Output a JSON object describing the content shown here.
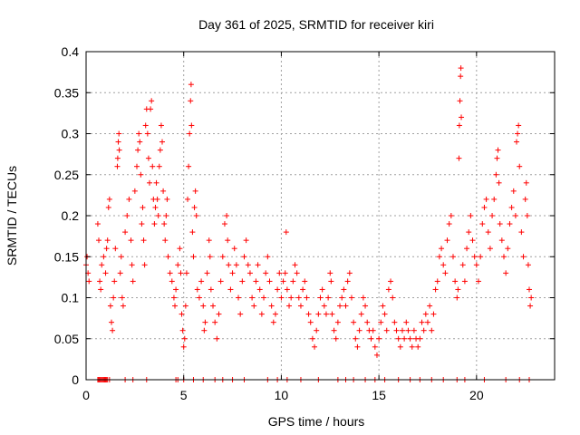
{
  "chart_data": {
    "type": "scatter",
    "title": "Day 361 of 2025, SRMTID for receiver kiri",
    "xlabel": "GPS time / hours",
    "ylabel": "SRMTID / TECUs",
    "xlim": [
      0,
      24
    ],
    "ylim": [
      0,
      0.4
    ],
    "grid": true,
    "marker": "+",
    "color": "#ff0000",
    "x_ticks": [
      "0",
      "5",
      "10",
      "15",
      "20"
    ],
    "x_tick_values": [
      0,
      5,
      10,
      15,
      20
    ],
    "y_ticks": [
      "0",
      "0.05",
      "0.1",
      "0.15",
      "0.2",
      "0.25",
      "0.3",
      "0.35",
      "0.4"
    ],
    "y_tick_values": [
      0,
      0.05,
      0.1,
      0.15,
      0.2,
      0.25,
      0.3,
      0.35,
      0.4
    ],
    "series": [
      {
        "name": "SRMTID",
        "points": [
          [
            0.0,
            0.14
          ],
          [
            0.05,
            0.15
          ],
          [
            0.1,
            0.13
          ],
          [
            0.15,
            0.12
          ],
          [
            0.6,
            0.19
          ],
          [
            0.65,
            0.17
          ],
          [
            0.7,
            0.12
          ],
          [
            0.75,
            0.11
          ],
          [
            0.8,
            0.14
          ],
          [
            0.9,
            0.15
          ],
          [
            1.0,
            0.13
          ],
          [
            1.05,
            0.16
          ],
          [
            1.1,
            0.17
          ],
          [
            1.15,
            0.21
          ],
          [
            1.2,
            0.22
          ],
          [
            1.25,
            0.09
          ],
          [
            1.3,
            0.07
          ],
          [
            1.35,
            0.06
          ],
          [
            1.4,
            0.1
          ],
          [
            1.45,
            0.12
          ],
          [
            1.5,
            0.16
          ],
          [
            1.6,
            0.26
          ],
          [
            1.62,
            0.27
          ],
          [
            1.65,
            0.29
          ],
          [
            1.68,
            0.3
          ],
          [
            1.7,
            0.28
          ],
          [
            1.75,
            0.13
          ],
          [
            1.8,
            0.15
          ],
          [
            1.85,
            0.1
          ],
          [
            1.9,
            0.09
          ],
          [
            2.0,
            0.18
          ],
          [
            2.1,
            0.2
          ],
          [
            2.2,
            0.22
          ],
          [
            2.3,
            0.17
          ],
          [
            2.35,
            0.14
          ],
          [
            2.4,
            0.12
          ],
          [
            2.5,
            0.23
          ],
          [
            2.6,
            0.26
          ],
          [
            2.65,
            0.28
          ],
          [
            2.7,
            0.3
          ],
          [
            2.75,
            0.29
          ],
          [
            2.8,
            0.25
          ],
          [
            2.85,
            0.19
          ],
          [
            2.9,
            0.21
          ],
          [
            2.95,
            0.17
          ],
          [
            3.0,
            0.14
          ],
          [
            3.05,
            0.31
          ],
          [
            3.1,
            0.33
          ],
          [
            3.15,
            0.3
          ],
          [
            3.2,
            0.27
          ],
          [
            3.25,
            0.24
          ],
          [
            3.3,
            0.33
          ],
          [
            3.35,
            0.34
          ],
          [
            3.4,
            0.26
          ],
          [
            3.45,
            0.22
          ],
          [
            3.5,
            0.19
          ],
          [
            3.55,
            0.21
          ],
          [
            3.6,
            0.24
          ],
          [
            3.65,
            0.22
          ],
          [
            3.7,
            0.2
          ],
          [
            3.75,
            0.26
          ],
          [
            3.8,
            0.28
          ],
          [
            3.85,
            0.31
          ],
          [
            3.9,
            0.29
          ],
          [
            3.95,
            0.23
          ],
          [
            4.0,
            0.19
          ],
          [
            4.05,
            0.17
          ],
          [
            4.1,
            0.2
          ],
          [
            4.15,
            0.22
          ],
          [
            4.2,
            0.15
          ],
          [
            4.3,
            0.13
          ],
          [
            4.4,
            0.12
          ],
          [
            4.5,
            0.1
          ],
          [
            4.55,
            0.09
          ],
          [
            4.6,
            0.11
          ],
          [
            4.7,
            0.14
          ],
          [
            4.8,
            0.16
          ],
          [
            4.85,
            0.13
          ],
          [
            4.9,
            0.08
          ],
          [
            4.95,
            0.06
          ],
          [
            5.0,
            0.04
          ],
          [
            5.05,
            0.05
          ],
          [
            5.1,
            0.09
          ],
          [
            5.15,
            0.13
          ],
          [
            5.2,
            0.22
          ],
          [
            5.25,
            0.26
          ],
          [
            5.3,
            0.3
          ],
          [
            5.35,
            0.34
          ],
          [
            5.38,
            0.36
          ],
          [
            5.4,
            0.31
          ],
          [
            5.45,
            0.18
          ],
          [
            5.5,
            0.15
          ],
          [
            5.55,
            0.21
          ],
          [
            5.6,
            0.23
          ],
          [
            5.65,
            0.2
          ],
          [
            5.7,
            0.11
          ],
          [
            5.8,
            0.1
          ],
          [
            5.9,
            0.12
          ],
          [
            6.0,
            0.09
          ],
          [
            6.05,
            0.06
          ],
          [
            6.1,
            0.07
          ],
          [
            6.2,
            0.13
          ],
          [
            6.3,
            0.17
          ],
          [
            6.35,
            0.15
          ],
          [
            6.4,
            0.11
          ],
          [
            6.5,
            0.09
          ],
          [
            6.6,
            0.07
          ],
          [
            6.7,
            0.05
          ],
          [
            6.8,
            0.08
          ],
          [
            6.9,
            0.12
          ],
          [
            7.0,
            0.15
          ],
          [
            7.1,
            0.19
          ],
          [
            7.2,
            0.2
          ],
          [
            7.25,
            0.17
          ],
          [
            7.3,
            0.14
          ],
          [
            7.4,
            0.11
          ],
          [
            7.5,
            0.13
          ],
          [
            7.6,
            0.16
          ],
          [
            7.7,
            0.14
          ],
          [
            7.8,
            0.1
          ],
          [
            7.9,
            0.08
          ],
          [
            8.0,
            0.12
          ],
          [
            8.1,
            0.15
          ],
          [
            8.2,
            0.17
          ],
          [
            8.3,
            0.14
          ],
          [
            8.4,
            0.13
          ],
          [
            8.5,
            0.1
          ],
          [
            8.6,
            0.09
          ],
          [
            8.7,
            0.12
          ],
          [
            8.8,
            0.14
          ],
          [
            8.9,
            0.11
          ],
          [
            9.0,
            0.08
          ],
          [
            9.1,
            0.1
          ],
          [
            9.2,
            0.13
          ],
          [
            9.3,
            0.15
          ],
          [
            9.4,
            0.12
          ],
          [
            9.5,
            0.09
          ],
          [
            9.6,
            0.07
          ],
          [
            9.7,
            0.08
          ],
          [
            9.8,
            0.11
          ],
          [
            9.9,
            0.13
          ],
          [
            10.0,
            0.1
          ],
          [
            10.1,
            0.12
          ],
          [
            10.2,
            0.13
          ],
          [
            10.25,
            0.18
          ],
          [
            10.3,
            0.11
          ],
          [
            10.4,
            0.09
          ],
          [
            10.5,
            0.1
          ],
          [
            10.6,
            0.12
          ],
          [
            10.7,
            0.14
          ],
          [
            10.8,
            0.13
          ],
          [
            10.9,
            0.1
          ],
          [
            11.0,
            0.09
          ],
          [
            11.1,
            0.11
          ],
          [
            11.2,
            0.12
          ],
          [
            11.3,
            0.1
          ],
          [
            11.4,
            0.08
          ],
          [
            11.5,
            0.07
          ],
          [
            11.6,
            0.05
          ],
          [
            11.7,
            0.04
          ],
          [
            11.8,
            0.06
          ],
          [
            11.9,
            0.08
          ],
          [
            12.0,
            0.1
          ],
          [
            12.1,
            0.11
          ],
          [
            12.2,
            0.09
          ],
          [
            12.3,
            0.08
          ],
          [
            12.4,
            0.1
          ],
          [
            12.5,
            0.13
          ],
          [
            12.55,
            0.12
          ],
          [
            12.6,
            0.08
          ],
          [
            12.7,
            0.06
          ],
          [
            12.8,
            0.05
          ],
          [
            12.9,
            0.07
          ],
          [
            13.0,
            0.09
          ],
          [
            13.1,
            0.1
          ],
          [
            13.2,
            0.11
          ],
          [
            13.3,
            0.09
          ],
          [
            13.4,
            0.12
          ],
          [
            13.5,
            0.13
          ],
          [
            13.6,
            0.1
          ],
          [
            13.7,
            0.07
          ],
          [
            13.8,
            0.05
          ],
          [
            13.9,
            0.04
          ],
          [
            14.0,
            0.06
          ],
          [
            14.1,
            0.08
          ],
          [
            14.2,
            0.1
          ],
          [
            14.3,
            0.09
          ],
          [
            14.4,
            0.07
          ],
          [
            14.5,
            0.06
          ],
          [
            14.6,
            0.05
          ],
          [
            14.7,
            0.06
          ],
          [
            14.8,
            0.04
          ],
          [
            14.9,
            0.03
          ],
          [
            15.0,
            0.05
          ],
          [
            15.1,
            0.07
          ],
          [
            15.2,
            0.09
          ],
          [
            15.3,
            0.08
          ],
          [
            15.4,
            0.06
          ],
          [
            15.5,
            0.11
          ],
          [
            15.6,
            0.12
          ],
          [
            15.7,
            0.1
          ],
          [
            15.8,
            0.07
          ],
          [
            15.9,
            0.06
          ],
          [
            16.0,
            0.05
          ],
          [
            16.1,
            0.04
          ],
          [
            16.2,
            0.06
          ],
          [
            16.3,
            0.05
          ],
          [
            16.4,
            0.07
          ],
          [
            16.5,
            0.06
          ],
          [
            16.6,
            0.05
          ],
          [
            16.7,
            0.04
          ],
          [
            16.8,
            0.06
          ],
          [
            16.9,
            0.05
          ],
          [
            17.0,
            0.04
          ],
          [
            17.1,
            0.05
          ],
          [
            17.2,
            0.07
          ],
          [
            17.3,
            0.06
          ],
          [
            17.4,
            0.08
          ],
          [
            17.5,
            0.07
          ],
          [
            17.6,
            0.09
          ],
          [
            17.7,
            0.06
          ],
          [
            17.8,
            0.08
          ],
          [
            17.9,
            0.11
          ],
          [
            18.0,
            0.12
          ],
          [
            18.1,
            0.15
          ],
          [
            18.2,
            0.16
          ],
          [
            18.3,
            0.14
          ],
          [
            18.4,
            0.13
          ],
          [
            18.5,
            0.17
          ],
          [
            18.6,
            0.19
          ],
          [
            18.7,
            0.2
          ],
          [
            18.8,
            0.15
          ],
          [
            18.9,
            0.12
          ],
          [
            19.0,
            0.1
          ],
          [
            19.05,
            0.11
          ],
          [
            19.1,
            0.27
          ],
          [
            19.12,
            0.31
          ],
          [
            19.15,
            0.34
          ],
          [
            19.18,
            0.37
          ],
          [
            19.2,
            0.38
          ],
          [
            19.22,
            0.32
          ],
          [
            19.3,
            0.14
          ],
          [
            19.4,
            0.12
          ],
          [
            19.5,
            0.16
          ],
          [
            19.6,
            0.18
          ],
          [
            19.7,
            0.2
          ],
          [
            19.8,
            0.17
          ],
          [
            19.9,
            0.15
          ],
          [
            20.0,
            0.14
          ],
          [
            20.1,
            0.12
          ],
          [
            20.2,
            0.15
          ],
          [
            20.3,
            0.19
          ],
          [
            20.4,
            0.21
          ],
          [
            20.5,
            0.22
          ],
          [
            20.6,
            0.18
          ],
          [
            20.7,
            0.16
          ],
          [
            20.8,
            0.2
          ],
          [
            20.9,
            0.22
          ],
          [
            21.0,
            0.25
          ],
          [
            21.05,
            0.27
          ],
          [
            21.1,
            0.28
          ],
          [
            21.15,
            0.24
          ],
          [
            21.2,
            0.19
          ],
          [
            21.3,
            0.17
          ],
          [
            21.4,
            0.15
          ],
          [
            21.5,
            0.13
          ],
          [
            21.6,
            0.16
          ],
          [
            21.7,
            0.19
          ],
          [
            21.8,
            0.21
          ],
          [
            21.9,
            0.23
          ],
          [
            22.0,
            0.2
          ],
          [
            22.05,
            0.29
          ],
          [
            22.1,
            0.3
          ],
          [
            22.15,
            0.31
          ],
          [
            22.2,
            0.26
          ],
          [
            22.3,
            0.18
          ],
          [
            22.4,
            0.15
          ],
          [
            22.5,
            0.22
          ],
          [
            22.55,
            0.24
          ],
          [
            22.6,
            0.2
          ],
          [
            22.65,
            0.14
          ],
          [
            22.7,
            0.11
          ],
          [
            22.75,
            0.09
          ],
          [
            22.8,
            0.1
          ]
        ]
      }
    ],
    "zero_points_x": [
      0.6,
      0.65,
      0.7,
      0.75,
      0.8,
      0.85,
      0.9,
      0.95,
      1.0,
      1.05,
      1.1,
      1.2,
      2.0,
      2.4,
      3.1,
      4.6,
      4.7,
      5.0,
      5.5,
      6.0,
      6.6,
      7.0,
      7.5,
      8.1,
      9.3,
      9.8,
      10.3,
      11.0,
      11.9,
      12.9,
      13.3,
      13.7,
      14.3,
      14.8,
      15.3,
      16.0,
      16.6,
      17.1,
      17.7,
      18.3,
      19.0,
      19.4,
      20.4,
      21.5,
      22.2,
      22.7
    ]
  }
}
